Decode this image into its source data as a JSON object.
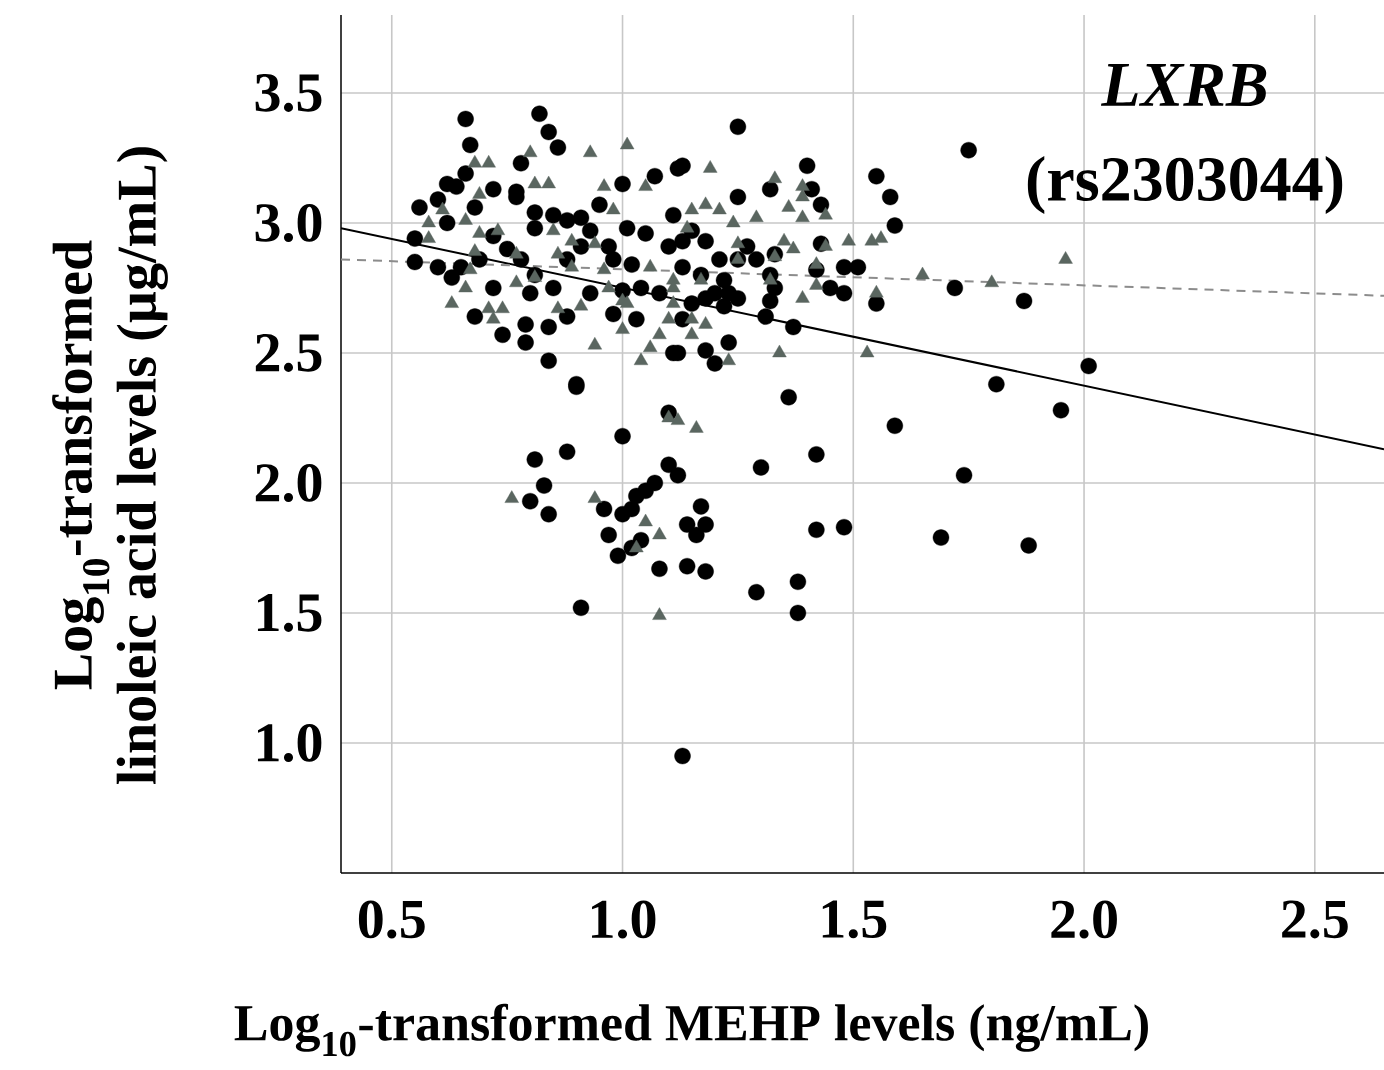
{
  "chart_data": {
    "type": "scatter",
    "xlabel": "Log$_{10}$-transformed  MEHP levels (ng/mL)",
    "ylabel": "Log$_{10}$-transformed linoleic acid levels (µg/mL)",
    "annotations": [
      "*LXRB*",
      "(rs2303044)"
    ],
    "xlim": [
      0.39,
      2.65
    ],
    "ylim": [
      0.5,
      3.8
    ],
    "xticks": [
      0.5,
      {
        "value": 1,
        "label": "1.0"
      },
      1.5,
      {
        "value": 2,
        "label": "2.0"
      },
      2.5
    ],
    "yticks": [
      {
        "value": 1,
        "label": "1.0"
      },
      1.5,
      {
        "value": 2,
        "label": "2.0"
      },
      2.5,
      {
        "value": 3,
        "label": "3.0"
      },
      3.5
    ],
    "grid": true,
    "series": [
      {
        "type": "scatter",
        "marker": "circle",
        "color": "#000000",
        "x": [
          0.66,
          0.67,
          0.82,
          0.84,
          0.86,
          0.78,
          0.66,
          0.62,
          0.64,
          0.6,
          0.56,
          0.72,
          0.77,
          0.55,
          0.55,
          0.6,
          0.63,
          0.68,
          0.74,
          0.79,
          0.84,
          0.9,
          0.79,
          0.84,
          0.88,
          0.93,
          0.72,
          0.62,
          0.68,
          0.72,
          0.75,
          0.77,
          0.81,
          0.85,
          0.88,
          0.91,
          0.93,
          0.95,
          1.0,
          0.97,
          1.01,
          1.05,
          1.07,
          1.12,
          1.1,
          0.98,
          1.02,
          1.04,
          1.0,
          1.03,
          0.98,
          1.08,
          1.11,
          0.81,
          0.85,
          0.8,
          0.65,
          0.69,
          0.78,
          0.88,
          0.91,
          0.81,
          1.25,
          1.13,
          1.25,
          1.32,
          1.4,
          1.41,
          1.43,
          1.55,
          1.58,
          1.59,
          1.75,
          1.72,
          1.55,
          1.51,
          1.48,
          1.45,
          1.48,
          1.43,
          1.42,
          1.37,
          1.31,
          1.32,
          1.33,
          1.32,
          1.33,
          1.27,
          1.29,
          1.25,
          1.21,
          1.18,
          1.17,
          1.22,
          1.23,
          1.2,
          1.18,
          1.22,
          1.25,
          1.13,
          1.11,
          1.13,
          1.13,
          1.12,
          1.18,
          1.2,
          1.23,
          1.15,
          1.15,
          1.87,
          2.01,
          1.81,
          1.95,
          0.9,
          1.36,
          1.59,
          1.1,
          1.0,
          0.88,
          0.81,
          1.3,
          1.42,
          1.1,
          1.12,
          0.83,
          0.8,
          0.84,
          1.07,
          1.05,
          1.03,
          1.02,
          1.0,
          0.96,
          0.97,
          0.99,
          1.02,
          1.04,
          1.17,
          1.14,
          1.18,
          1.16,
          1.08,
          1.14,
          1.18,
          1.42,
          1.48,
          1.29,
          1.38,
          1.38,
          0.91,
          1.13,
          1.74,
          1.69,
          1.88
        ],
        "values": [
          3.4,
          3.3,
          3.42,
          3.35,
          3.29,
          3.23,
          3.19,
          3.15,
          3.14,
          3.09,
          3.06,
          3.13,
          3.12,
          2.94,
          2.85,
          2.83,
          2.79,
          2.64,
          2.57,
          2.54,
          2.47,
          2.38,
          2.61,
          2.6,
          2.64,
          2.73,
          2.75,
          3.0,
          3.06,
          2.95,
          2.9,
          3.1,
          3.04,
          3.03,
          3.01,
          3.02,
          2.97,
          3.07,
          3.15,
          2.91,
          2.98,
          2.96,
          3.18,
          3.21,
          2.91,
          2.86,
          2.84,
          2.75,
          2.74,
          2.63,
          2.65,
          2.73,
          2.5,
          2.8,
          2.75,
          2.73,
          2.83,
          2.86,
          2.86,
          2.86,
          2.91,
          2.98,
          3.37,
          3.22,
          3.1,
          3.13,
          3.22,
          3.13,
          3.07,
          3.18,
          3.1,
          2.99,
          3.28,
          2.75,
          2.69,
          2.83,
          2.83,
          2.75,
          2.73,
          2.92,
          2.82,
          2.6,
          2.64,
          2.7,
          2.75,
          2.8,
          2.88,
          2.91,
          2.86,
          2.86,
          2.86,
          2.93,
          2.8,
          2.78,
          2.73,
          2.73,
          2.71,
          2.68,
          2.71,
          2.93,
          3.03,
          2.83,
          2.63,
          2.5,
          2.51,
          2.46,
          2.54,
          2.97,
          2.69,
          2.7,
          2.45,
          2.38,
          2.28,
          2.37,
          2.33,
          2.22,
          2.27,
          2.18,
          2.12,
          2.09,
          2.06,
          2.11,
          2.07,
          2.03,
          1.99,
          1.93,
          1.88,
          2.0,
          1.97,
          1.95,
          1.9,
          1.88,
          1.9,
          1.8,
          1.72,
          1.75,
          1.78,
          1.91,
          1.84,
          1.84,
          1.8,
          1.67,
          1.68,
          1.66,
          1.82,
          1.83,
          1.58,
          1.62,
          1.5,
          1.52,
          0.95,
          2.03,
          1.79,
          1.76
        ]
      },
      {
        "type": "scatter",
        "marker": "triangle",
        "color": "#5a6660",
        "x": [
          0.68,
          0.71,
          0.8,
          0.93,
          1.01,
          0.81,
          0.84,
          0.96,
          1.05,
          0.69,
          0.61,
          0.58,
          0.58,
          0.66,
          0.69,
          0.73,
          0.77,
          0.68,
          0.67,
          0.85,
          0.89,
          0.86,
          0.94,
          0.98,
          0.89,
          0.81,
          0.77,
          0.66,
          0.96,
          1.06,
          0.63,
          0.71,
          0.74,
          0.72,
          0.86,
          0.91,
          0.94,
          1.0,
          1.01,
          1.0,
          1.04,
          1.06,
          1.08,
          1.1,
          1.11,
          0.97,
          1.19,
          1.33,
          1.39,
          1.39,
          1.15,
          1.18,
          1.21,
          1.29,
          1.36,
          1.39,
          1.44,
          1.24,
          1.14,
          1.35,
          1.37,
          1.49,
          1.54,
          1.56,
          1.44,
          1.42,
          1.33,
          1.25,
          1.25,
          1.17,
          1.32,
          1.42,
          1.65,
          1.55,
          1.39,
          1.11,
          1.11,
          1.15,
          1.18,
          1.15,
          1.34,
          1.53,
          1.23,
          1.8,
          1.96,
          0.76,
          0.94,
          1.1,
          1.12,
          1.16,
          1.05,
          1.08,
          1.03,
          1.08
        ],
        "values": [
          3.23,
          3.23,
          3.27,
          3.27,
          3.3,
          3.15,
          3.15,
          3.14,
          3.14,
          3.11,
          3.05,
          3.0,
          2.94,
          3.01,
          2.96,
          2.97,
          2.88,
          2.89,
          2.82,
          2.97,
          2.93,
          2.88,
          2.92,
          3.05,
          2.83,
          2.79,
          2.77,
          2.75,
          2.82,
          2.83,
          2.69,
          2.67,
          2.67,
          2.63,
          2.67,
          2.68,
          2.53,
          2.7,
          2.69,
          2.59,
          2.47,
          2.52,
          2.57,
          2.63,
          2.78,
          2.75,
          3.21,
          3.17,
          3.14,
          3.1,
          3.05,
          3.07,
          3.05,
          3.02,
          3.06,
          3.02,
          3.03,
          3.0,
          2.98,
          2.93,
          2.9,
          2.93,
          2.93,
          2.94,
          2.91,
          2.84,
          2.87,
          2.86,
          2.92,
          2.78,
          2.78,
          2.76,
          2.8,
          2.73,
          2.71,
          2.75,
          2.69,
          2.63,
          2.61,
          2.57,
          2.5,
          2.5,
          2.47,
          2.77,
          2.86,
          1.94,
          1.94,
          2.25,
          2.24,
          2.21,
          1.85,
          1.8,
          1.75,
          1.49
        ]
      },
      {
        "type": "line",
        "line_style": "solid",
        "color": "#000000",
        "x": [
          0.39,
          2.65
        ],
        "values": [
          2.98,
          2.13
        ]
      },
      {
        "type": "line",
        "line_style": "dashed",
        "color": "#8c8c8c",
        "x": [
          0.39,
          2.65
        ],
        "values": [
          2.86,
          2.72
        ]
      }
    ]
  }
}
